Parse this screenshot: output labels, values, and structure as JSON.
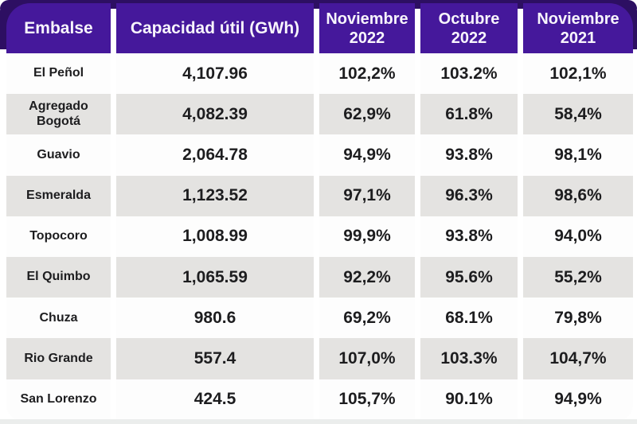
{
  "chart_data": {
    "type": "table",
    "columns": [
      "Embalse",
      "Capacidad útil (GWh)",
      "Noviembre 2022",
      "Octubre 2022",
      "Noviembre 2021"
    ],
    "rows": [
      [
        "El Peñol",
        "4,107.96",
        "102,2%",
        "103.2%",
        "102,1%"
      ],
      [
        "Agregado Bogotá",
        "4,082.39",
        "62,9%",
        "61.8%",
        "58,4%"
      ],
      [
        "Guavio",
        "2,064.78",
        "94,9%",
        "93.8%",
        "98,1%"
      ],
      [
        "Esmeralda",
        "1,123.52",
        "97,1%",
        "96.3%",
        "98,6%"
      ],
      [
        "Topocoro",
        "1,008.99",
        "99,9%",
        "93.8%",
        "94,0%"
      ],
      [
        "El Quimbo",
        "1,065.59",
        "92,2%",
        "95.6%",
        "55,2%"
      ],
      [
        "Chuza",
        "980.6",
        "69,2%",
        "68.1%",
        "79,8%"
      ],
      [
        "Rio Grande",
        "557.4",
        "107,0%",
        "103.3%",
        "104,7%"
      ],
      [
        "San Lorenzo",
        "424.5",
        "105,7%",
        "90.1%",
        "94,9%"
      ]
    ],
    "layout": {
      "legend": "none",
      "grid": "off",
      "row_striping": "alternating white / light gray starting with white"
    }
  },
  "colors": {
    "header_purple": "#45189b",
    "backdrop_dark_purple": "#2d0f62",
    "header_text": "#f8f5fc",
    "row_alt_gray": "#e4e3e1",
    "row_white": "#fdfdfd",
    "cell_text": "#1d1d1f"
  }
}
